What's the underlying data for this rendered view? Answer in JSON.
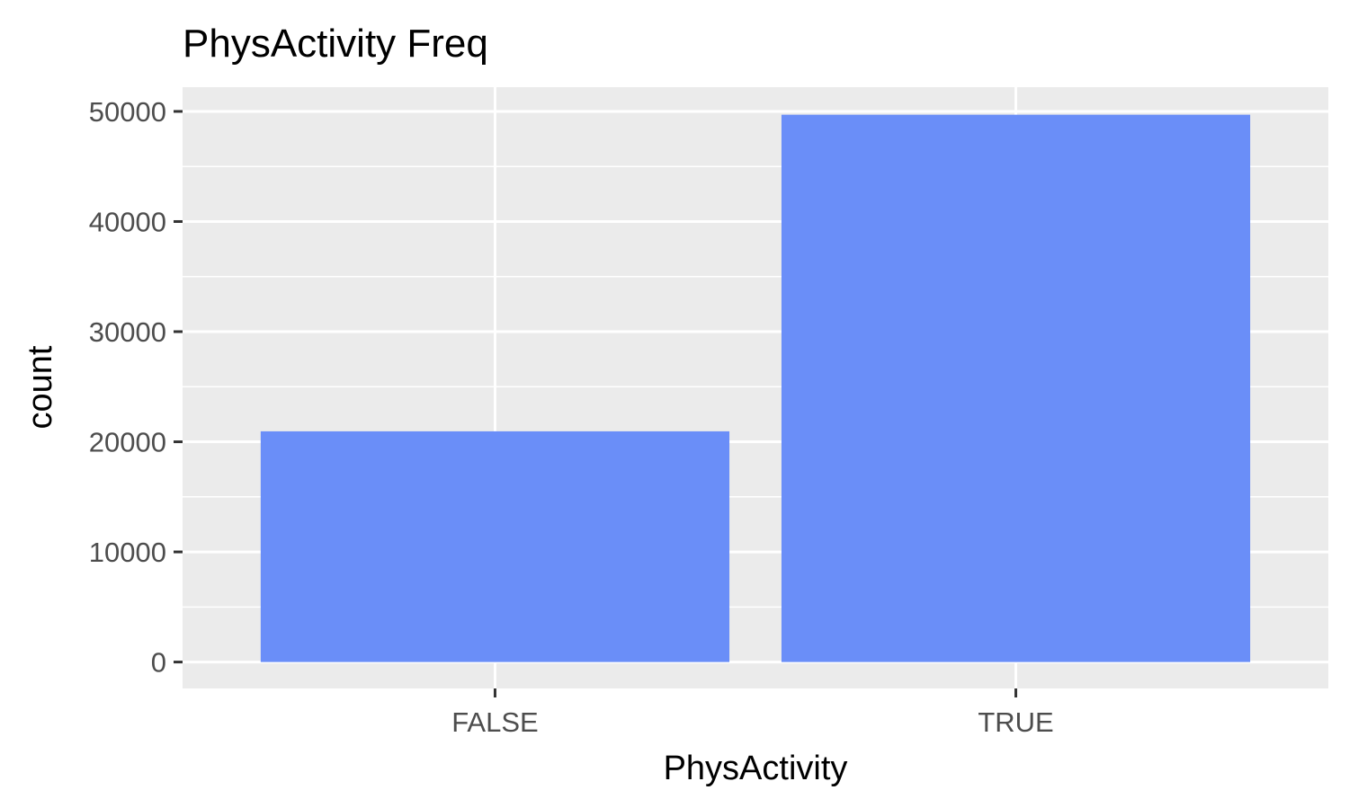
{
  "chart_data": {
    "type": "bar",
    "title": "PhysActivity Freq",
    "xlabel": "PhysActivity",
    "ylabel": "count",
    "categories": [
      "FALSE",
      "TRUE"
    ],
    "values": [
      20950,
      49700
    ],
    "ylim": [
      -2400,
      52200
    ],
    "yticks": [
      0,
      10000,
      20000,
      30000,
      40000,
      50000
    ],
    "ytick_labels": [
      "0",
      "10000",
      "20000",
      "30000",
      "40000",
      "50000"
    ],
    "grid": true,
    "legend": "none",
    "colors": {
      "bar": "#6a8ef8",
      "panel_background": "#ebebeb",
      "grid_line": "#ffffff",
      "tick_label": "#4d4d4d",
      "text": "#000000"
    }
  }
}
